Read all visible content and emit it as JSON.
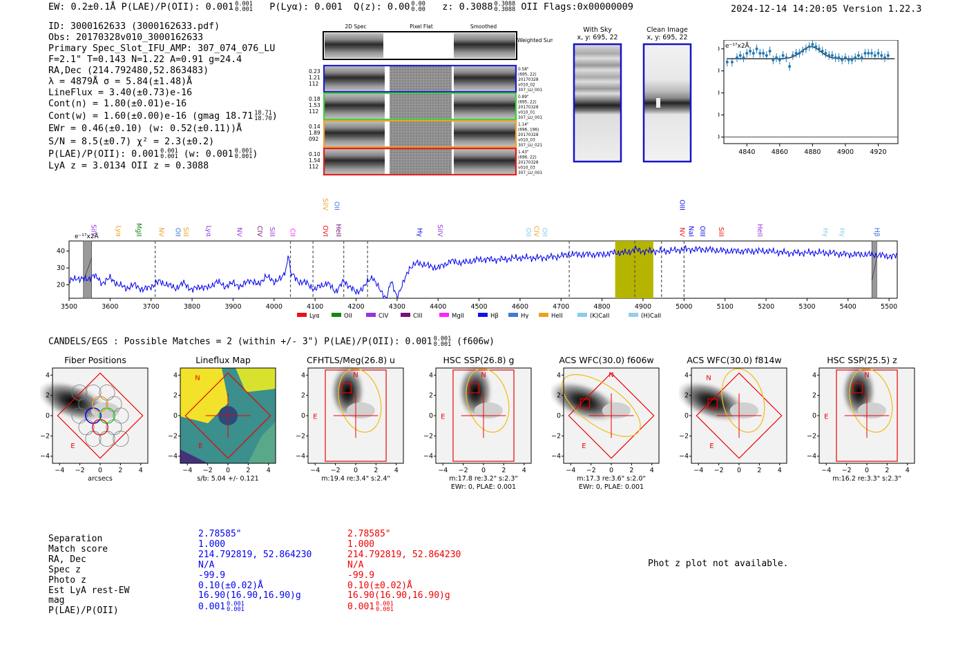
{
  "header": {
    "left": "EW: 0.2±0.1Å  P(LAE)/P(OII): 0.001",
    "lae_sup": "0.001",
    "lae_sub": "0.001",
    "pl": "P(Lyα): 0.001",
    "qz": "Q(z): 0.00",
    "qz_sup": "0.00",
    "qz_sub": "0.00",
    "z": "z: 0.3088",
    "z_sup": "0.3088",
    "z_sub": "0.3088",
    "z_tail": "OII   Flags:0x00000009",
    "right": "2024-12-14 14:20:05  Version 1.22.3"
  },
  "info": {
    "id": "ID: 3000162633 (3000162633.pdf)",
    "obs": "Obs: 20170328v010_3000162633",
    "primary": "Primary Spec_Slot_IFU_AMP: 307_074_076_LU",
    "f": "F=2.1\"  T=0.143  N=1.22  A=0.91  g=24.4",
    "radec": "RA,Dec (214.792480,52.863483)",
    "lambda": "λ = 4879Å  σ = 5.84(±1.48)Å",
    "lineflux": "LineFlux = 3.40(±0.73)e-16",
    "contn": "Cont(n) = 1.80(±0.01)e-16",
    "contw": "Cont(w) = 1.60(±0.00)e-16 (gmag 18.71",
    "contw_sup": "18.71",
    "contw_sub": "18.70",
    "contw_tail": ")",
    "ewr": "EWr = 0.46(±0.10) (w: 0.52(±0.11))Å",
    "sn": "S/N = 8.5(±0.7)  χ² = 2.3(±0.2)",
    "plae": "P(LAE)/P(OII): 0.001",
    "plae_sup": "0.001",
    "plae_sub": "0.001",
    "plae_w": "(w: 0.001",
    "plae_w_sup": "0.001",
    "plae_w_sub": "0.001",
    "plae_tail": ")",
    "lya": "LyA z = 3.0134   OII z = 0.3088"
  },
  "cutouts": {
    "col_labels": [
      "2D Spec",
      "Pixel Flat",
      "Smoothed"
    ],
    "weighted_sum": "Weighted Sum",
    "rows": [
      {
        "color": "#1f1fd0",
        "left": [
          "0.23",
          "1.21",
          "112"
        ],
        "right": [
          "0.58\"",
          "(695, 22)",
          "20170328",
          "v010_02",
          "307_LU_001"
        ]
      },
      {
        "color": "#3fd03f",
        "left": [
          "0.18",
          "1.53",
          "112"
        ],
        "right": [
          "0.89\"",
          "(695, 22)",
          "20170328",
          "v010_01",
          "307_LU_001"
        ]
      },
      {
        "color": "#f0a030",
        "left": [
          "0.14",
          "1.89",
          "092"
        ],
        "right": [
          "1.14\"",
          "(696, 196)",
          "20170328",
          "v010_03",
          "307_LU_021"
        ]
      },
      {
        "color": "#e02020",
        "left": [
          "0.10",
          "1.54",
          "112"
        ],
        "right": [
          "1.43\"",
          "(696, 22)",
          "20170328",
          "v010_03",
          "307_LU_001"
        ]
      }
    ],
    "with_sky": "With Sky",
    "with_sky_xy": "x, y: 695, 22",
    "clean": "Clean Image",
    "clean_xy": "x, y: 695, 22"
  },
  "matches": {
    "title": "CANDELS/EGS : Possible Matches = 2 (within +/- 3\")  P(LAE)/P(OII): 0.001",
    "title_sup": "0.001",
    "title_sub": "0.001",
    "title_tail": "(f606w)"
  },
  "panels": [
    {
      "title": "Fiber Positions",
      "caption": "arcsecs",
      "caption2": ""
    },
    {
      "title": "Lineflux Map",
      "caption": "s/b: 5.04 +/- 0.121",
      "caption2": ""
    },
    {
      "title": "CFHTLS/Meg(26.8) u",
      "caption": "m:19.4  re:3.4\"  s:2.4\"",
      "caption2": ""
    },
    {
      "title": "HSC SSP(26.8) g",
      "caption": "m:17.8  re:3.2\"  s:2.3\"",
      "caption2": "EWr: 0, PLAE: 0.001"
    },
    {
      "title": "ACS WFC(30.0) f606w",
      "caption": "m:17.3  re:3.6\"  s:2.0\"",
      "caption2": "EWr: 0, PLAE: 0.001"
    },
    {
      "title": "ACS WFC(30.0) f814w",
      "caption": "",
      "caption2": ""
    },
    {
      "title": "HSC SSP(25.5) z",
      "caption": "m:16.2  re:3.3\"  s:2.3\"",
      "caption2": ""
    }
  ],
  "compass": {
    "n": "N",
    "e": "E"
  },
  "table": {
    "labels": [
      "Separation",
      "Match score",
      "RA, Dec",
      "Spec z",
      "Photo z",
      "Est LyA rest-EW",
      "mag",
      "P(LAE)/P(OII)"
    ],
    "blue": [
      "2.78585\"",
      "1.000",
      "214.792819, 52.864230",
      "N/A",
      "-99.9",
      "0.10(±0.02)Å",
      "16.90(16.90,16.90)g",
      "0.001"
    ],
    "blue_sup": "0.001",
    "blue_sub": "0.001",
    "red": [
      "2.78585\"",
      "1.000",
      "214.792819, 52.864230",
      "N/A",
      "-99.9",
      "0.10(±0.02)Å",
      "16.90(16.90,16.90)g",
      "0.001"
    ],
    "red_sup": "0.001",
    "red_sub": "0.001",
    "phot_z": "Phot z plot not available."
  },
  "chart_data": [
    {
      "type": "scatter",
      "title": "",
      "unit_label": "e⁻¹⁷x2Å",
      "xlim": [
        4826,
        4932
      ],
      "ylim": [
        -3,
        44
      ],
      "xticks": [
        4840,
        4860,
        4880,
        4900,
        4920
      ],
      "yticks": [
        0,
        10,
        20,
        30,
        40
      ],
      "x": [
        4828,
        4831,
        4834,
        4836,
        4838,
        4840,
        4842,
        4844,
        4846,
        4848,
        4850,
        4852,
        4854,
        4856,
        4858,
        4860,
        4862,
        4864,
        4866,
        4868,
        4870,
        4872,
        4874,
        4876,
        4878,
        4880,
        4882,
        4884,
        4886,
        4888,
        4890,
        4892,
        4894,
        4896,
        4898,
        4900,
        4902,
        4904,
        4906,
        4908,
        4910,
        4912,
        4914,
        4916,
        4918,
        4920,
        4922,
        4924,
        4926
      ],
      "y": [
        34,
        34,
        36,
        37,
        36,
        38,
        39,
        38,
        40,
        38,
        38,
        37,
        39,
        35,
        36,
        35,
        37,
        36,
        32,
        37,
        38,
        38,
        39,
        40,
        41,
        42,
        41,
        40,
        39,
        38,
        37,
        37,
        36,
        36,
        35,
        36,
        35,
        35,
        36,
        37,
        36,
        38,
        38,
        38,
        37,
        38,
        37,
        36,
        37
      ],
      "fit": {
        "center": 4879,
        "sigma": 5.84,
        "continuum": 35.5,
        "amplitude": 5.5
      }
    },
    {
      "type": "line",
      "title": "",
      "unit_label": "e⁻¹⁷x2Å",
      "xlim": [
        3500,
        5520
      ],
      "ylim": [
        12,
        46
      ],
      "xticks": [
        3500,
        3600,
        3700,
        3800,
        3900,
        4000,
        4100,
        4200,
        4300,
        4400,
        4500,
        4600,
        4700,
        4800,
        4900,
        5000,
        5100,
        5200,
        5300,
        5400,
        5500
      ],
      "yticks": [
        20,
        30,
        40
      ],
      "flux_anchors": [
        [
          3500,
          22
        ],
        [
          3520,
          24
        ],
        [
          3545,
          23
        ],
        [
          3560,
          26
        ],
        [
          3580,
          21
        ],
        [
          3600,
          24
        ],
        [
          3620,
          20
        ],
        [
          3640,
          18
        ],
        [
          3660,
          20
        ],
        [
          3680,
          17
        ],
        [
          3700,
          19
        ],
        [
          3720,
          22
        ],
        [
          3740,
          20
        ],
        [
          3760,
          18
        ],
        [
          3780,
          21
        ],
        [
          3800,
          17
        ],
        [
          3820,
          19
        ],
        [
          3840,
          18
        ],
        [
          3860,
          22
        ],
        [
          3880,
          19
        ],
        [
          3900,
          21
        ],
        [
          3920,
          19
        ],
        [
          3940,
          23
        ],
        [
          3960,
          20
        ],
        [
          3980,
          25
        ],
        [
          4000,
          22
        ],
        [
          4020,
          24
        ],
        [
          4030,
          30
        ],
        [
          4035,
          40
        ],
        [
          4040,
          27
        ],
        [
          4060,
          22
        ],
        [
          4080,
          21
        ],
        [
          4100,
          17
        ],
        [
          4110,
          19
        ],
        [
          4130,
          21
        ],
        [
          4150,
          16
        ],
        [
          4170,
          22
        ],
        [
          4190,
          18
        ],
        [
          4200,
          15
        ],
        [
          4220,
          19
        ],
        [
          4240,
          25
        ],
        [
          4260,
          16
        ],
        [
          4275,
          12
        ],
        [
          4285,
          22
        ],
        [
          4300,
          13
        ],
        [
          4310,
          18
        ],
        [
          4330,
          30
        ],
        [
          4350,
          33
        ],
        [
          4380,
          31
        ],
        [
          4400,
          30
        ],
        [
          4430,
          34
        ],
        [
          4460,
          33
        ],
        [
          4500,
          35
        ],
        [
          4550,
          35
        ],
        [
          4600,
          36
        ],
        [
          4650,
          36
        ],
        [
          4700,
          37
        ],
        [
          4720,
          38
        ],
        [
          4750,
          38
        ],
        [
          4800,
          38
        ],
        [
          4830,
          39
        ],
        [
          4860,
          39
        ],
        [
          4880,
          41
        ],
        [
          4900,
          40
        ],
        [
          4930,
          40
        ],
        [
          4960,
          40
        ],
        [
          5000,
          41
        ],
        [
          5050,
          41
        ],
        [
          5100,
          40
        ],
        [
          5150,
          40
        ],
        [
          5200,
          40
        ],
        [
          5250,
          39
        ],
        [
          5300,
          39
        ],
        [
          5350,
          39
        ],
        [
          5400,
          38
        ],
        [
          5450,
          38
        ],
        [
          5500,
          37
        ],
        [
          5520,
          37
        ]
      ],
      "dashed_lines": [
        3710,
        4040,
        4095,
        4170,
        4228,
        4720,
        4880,
        4945,
        5000
      ],
      "highlight_band": [
        4832,
        4925
      ],
      "masked_bands": [
        [
          3535,
          3555
        ],
        [
          5458,
          5470
        ]
      ],
      "legend": [
        {
          "label": "Lyα",
          "color": "#ee1111"
        },
        {
          "label": "OII",
          "color": "#118811"
        },
        {
          "label": "CIV",
          "color": "#9933dd"
        },
        {
          "label": "CIII",
          "color": "#771177"
        },
        {
          "label": "MgII",
          "color": "#ff22ff"
        },
        {
          "label": "Hβ",
          "color": "#1111ee"
        },
        {
          "label": "Hγ",
          "color": "#4477dd"
        },
        {
          "label": "HeII",
          "color": "#f0a020"
        },
        {
          "label": "(K)CaII",
          "color": "#88ccee"
        },
        {
          "label": "(H)CaII",
          "color": "#99ccee"
        }
      ],
      "line_labels": [
        {
          "label": "SiIV",
          "x": 3555,
          "color": "#9933dd",
          "row": 0
        },
        {
          "label": "Lyα",
          "x": 3615,
          "color": "#f0a020",
          "row": 0
        },
        {
          "label": "MgII",
          "x": 3665,
          "color": "#118811",
          "row": 0
        },
        {
          "label": "NV",
          "x": 3720,
          "color": "#f0a020",
          "row": 0
        },
        {
          "label": "OII",
          "x": 3760,
          "color": "#4477dd",
          "row": 0
        },
        {
          "label": "SiII",
          "x": 3780,
          "color": "#f0a020",
          "row": 0
        },
        {
          "label": "Lyα",
          "x": 3835,
          "color": "#9933dd",
          "row": 0
        },
        {
          "label": "NV",
          "x": 3910,
          "color": "#9933dd",
          "row": 0
        },
        {
          "label": "CIV",
          "x": 3960,
          "color": "#771177",
          "row": 0
        },
        {
          "label": "SiII",
          "x": 3990,
          "color": "#9933dd",
          "row": 0
        },
        {
          "label": "CII",
          "x": 4040,
          "color": "#ff22ff",
          "row": 0
        },
        {
          "label": "OVI",
          "x": 4120,
          "color": "#ee1111",
          "row": 0
        },
        {
          "label": "SiIV",
          "x": 4120,
          "color": "#f0a020",
          "row": 1
        },
        {
          "label": "OII",
          "x": 4148,
          "color": "#4477dd",
          "row": 1
        },
        {
          "label": "HeII",
          "x": 4152,
          "color": "#771177",
          "row": 0
        },
        {
          "label": "Hγ",
          "x": 4350,
          "color": "#1111ee",
          "row": 0
        },
        {
          "label": "SiIV",
          "x": 4400,
          "color": "#9933dd",
          "row": 0
        },
        {
          "label": "OII",
          "x": 4615,
          "color": "#88ccee",
          "row": 0
        },
        {
          "label": "CIV",
          "x": 4635,
          "color": "#f0a020",
          "row": 0
        },
        {
          "label": "OII",
          "x": 4655,
          "color": "#88ccee",
          "row": 0
        },
        {
          "label": "OIII",
          "x": 4990,
          "color": "#1111ee",
          "row": 1
        },
        {
          "label": "NV",
          "x": 4990,
          "color": "#ee1111",
          "row": 0
        },
        {
          "label": "NaI",
          "x": 5012,
          "color": "#1111ee",
          "row": 0
        },
        {
          "label": "OIII",
          "x": 5040,
          "color": "#1111ee",
          "row": 0
        },
        {
          "label": "SiII",
          "x": 5085,
          "color": "#ee1111",
          "row": 0
        },
        {
          "label": "HeII",
          "x": 5180,
          "color": "#9933dd",
          "row": 0
        },
        {
          "label": "Hγ",
          "x": 5340,
          "color": "#88ccee",
          "row": 0
        },
        {
          "label": "Hγ",
          "x": 5380,
          "color": "#88ccee",
          "row": 0
        },
        {
          "label": "Hβ",
          "x": 5465,
          "color": "#4477dd",
          "row": 0
        }
      ]
    }
  ],
  "panel_axes": {
    "ticks": [
      "-4",
      "-2",
      "0",
      "2",
      "4"
    ]
  }
}
